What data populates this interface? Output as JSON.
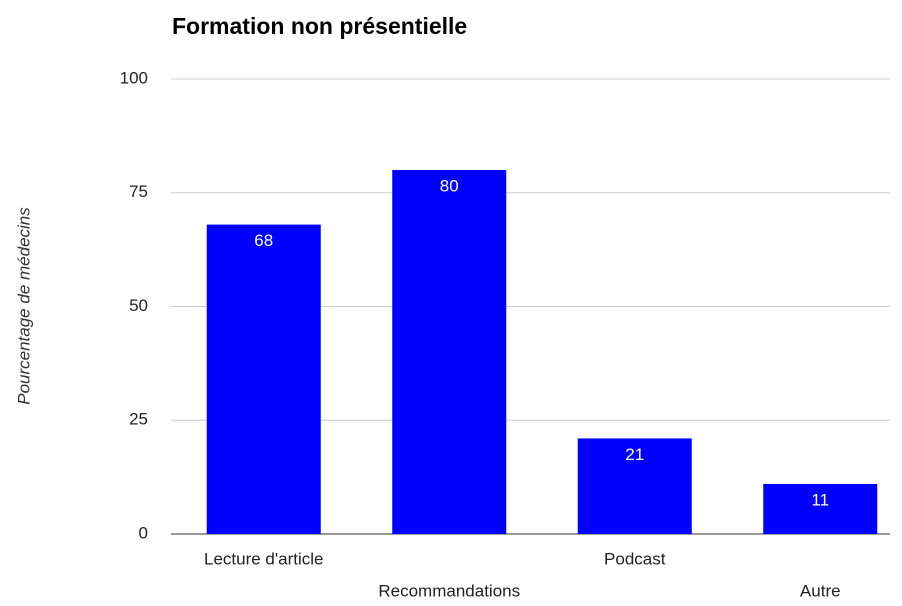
{
  "chart_data": {
    "type": "bar",
    "title": "Formation non présentielle",
    "y_label": "Pourcentage de médecins",
    "categories": [
      "Lecture d'article",
      "Recommandations",
      "Podcast",
      "Autre"
    ],
    "values": [
      68,
      80,
      21,
      11
    ],
    "color": "#0000ff",
    "ylim": [
      0,
      100
    ],
    "yticks": [
      0,
      25,
      50,
      75,
      100
    ],
    "grid": true
  }
}
